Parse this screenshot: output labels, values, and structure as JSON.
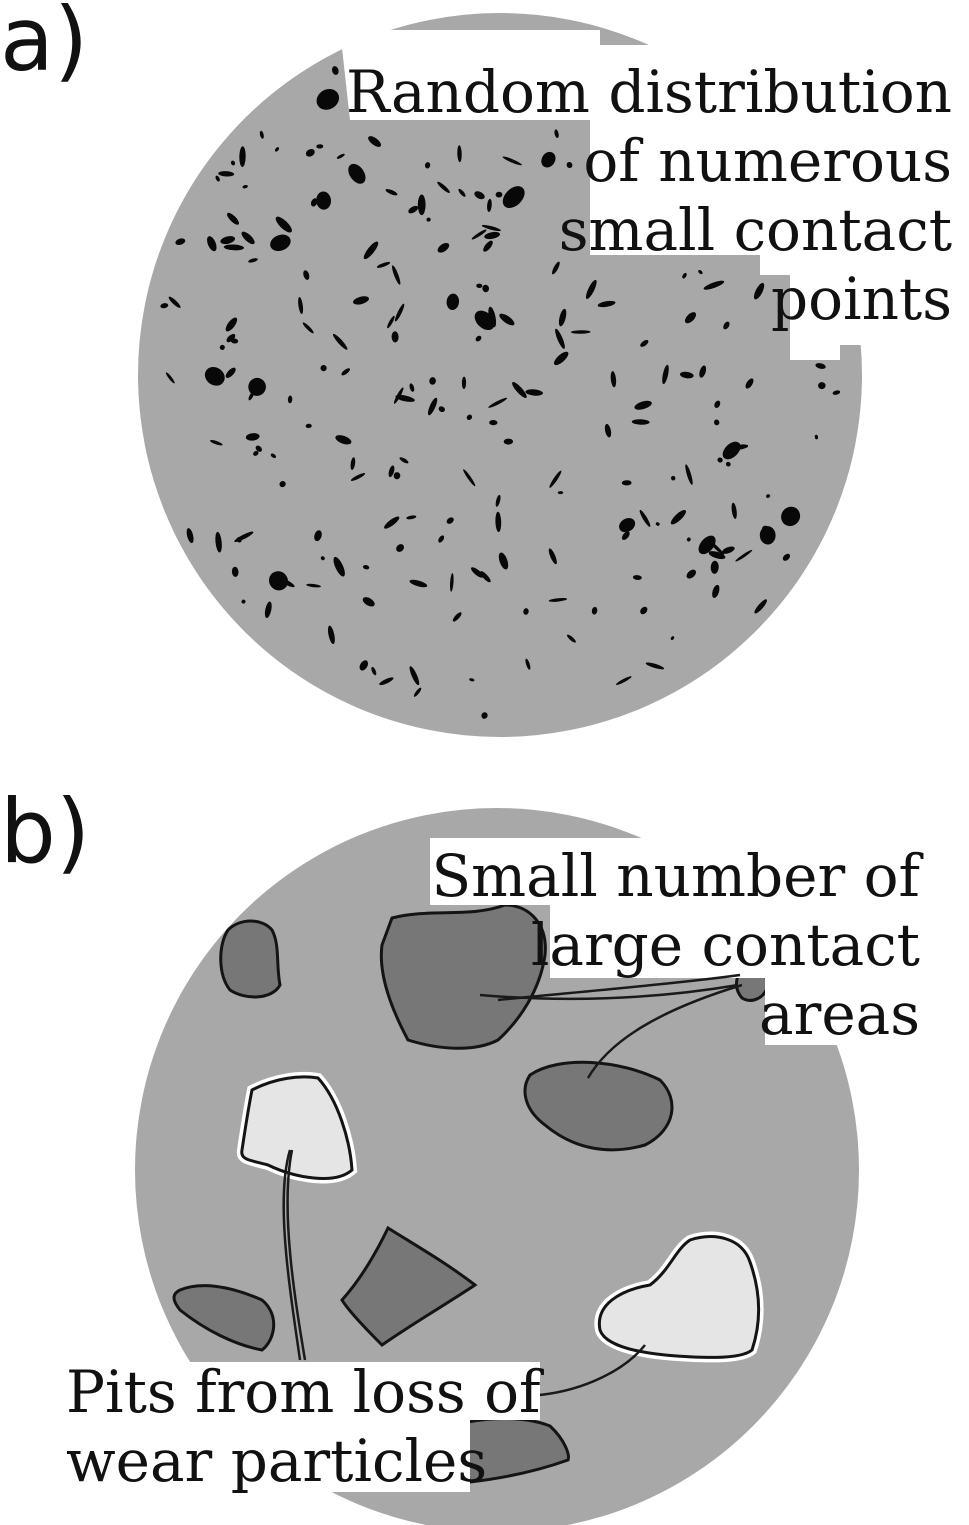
{
  "panel_a": {
    "letter": "a)",
    "callout_lines": [
      "Random distribution",
      "of numerous",
      "small contact",
      "points"
    ]
  },
  "panel_b": {
    "letter": "b)",
    "contact_callout_lines": [
      "Small number of",
      "large contact",
      "areas"
    ],
    "pit_callout_lines": [
      "Pits from loss of",
      "wear particles"
    ]
  }
}
